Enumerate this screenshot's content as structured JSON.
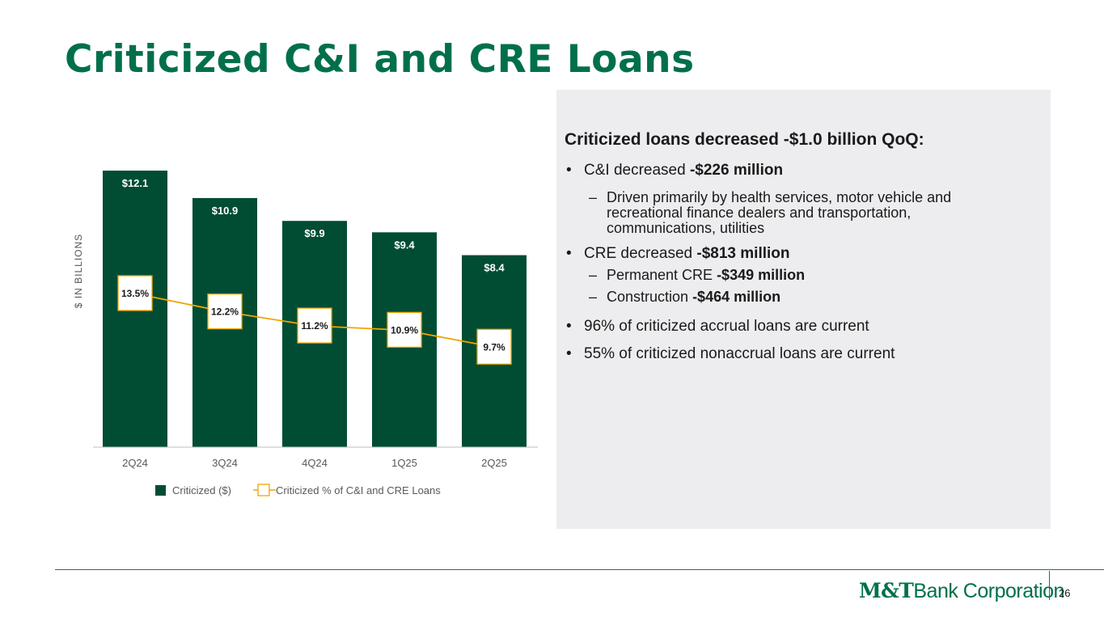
{
  "title": "Criticized C&I and CRE Loans",
  "colors": {
    "bar": "#004d33",
    "line": "#f0a500",
    "title": "#00704a"
  },
  "chart_data": {
    "type": "bar",
    "categories": [
      "2Q24",
      "3Q24",
      "4Q24",
      "1Q25",
      "2Q25"
    ],
    "ylabel": "$ IN BILLIONS",
    "series": [
      {
        "name": "Criticized ($)",
        "type": "bar",
        "values": [
          12.1,
          10.9,
          9.9,
          9.4,
          8.4
        ],
        "labels": [
          "$12.1",
          "$10.9",
          "$9.9",
          "$9.4",
          "$8.4"
        ]
      },
      {
        "name": "Criticized % of C&I and CRE Loans",
        "type": "line",
        "values": [
          13.5,
          12.2,
          11.2,
          10.9,
          9.7
        ],
        "labels": [
          "13.5%",
          "12.2%",
          "11.2%",
          "10.9%",
          "9.7%"
        ]
      }
    ],
    "legend": "bottom",
    "grid": false
  },
  "panel": {
    "heading": "Criticized loans decreased -$1.0 billion QoQ:",
    "bullet1": {
      "text": "C&I decreased ",
      "bold": "-$226 million"
    },
    "bullet1_sub": "Driven primarily by health services, motor vehicle and recreational finance dealers and transportation, communications, utilities",
    "bullet2": {
      "text": "CRE decreased ",
      "bold": "-$813 million"
    },
    "bullet2_sub1": {
      "text": "Permanent CRE ",
      "bold": "-$349 million"
    },
    "bullet2_sub2": {
      "text": "Construction ",
      "bold": "-$464 million"
    },
    "bullet3": "96% of criticized accrual loans are current",
    "bullet4": "55% of criticized nonaccrual loans are current"
  },
  "footer": {
    "logo_mt": "M&T",
    "logo_rest": "Bank Corporation",
    "page": "26"
  }
}
